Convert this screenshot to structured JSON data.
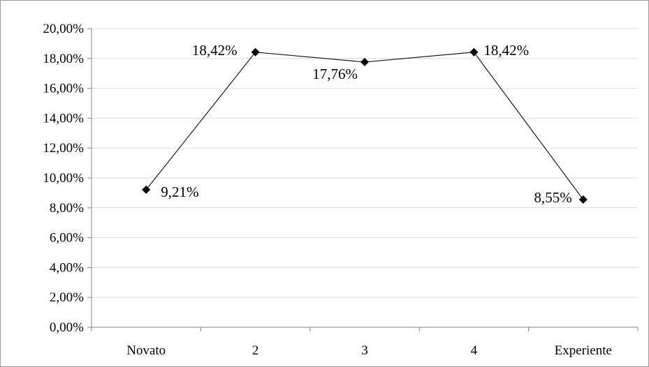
{
  "chart_data": {
    "type": "line",
    "title": "",
    "xlabel": "",
    "ylabel": "",
    "categories": [
      "Novato",
      "2",
      "3",
      "4",
      "Experiente"
    ],
    "series": [
      {
        "values": [
          9.21,
          18.42,
          17.76,
          18.42,
          8.55
        ],
        "data_labels": [
          "9,21%",
          "18,42%",
          "17,76%",
          "18,42%",
          "8,55%"
        ],
        "color": "#000000",
        "marker": "diamond"
      }
    ],
    "ylim": [
      0,
      20
    ],
    "y_ticks": [
      0,
      2,
      4,
      6,
      8,
      10,
      12,
      14,
      16,
      18,
      20
    ],
    "y_tick_labels": [
      "0,00%",
      "2,00%",
      "4,00%",
      "6,00%",
      "8,00%",
      "10,00%",
      "12,00%",
      "14,00%",
      "16,00%",
      "18,00%",
      "20,00%"
    ],
    "grid": true,
    "legend": "none",
    "colors": {
      "gridline": "#d9d9d9",
      "axis": "#868686",
      "border": "#9a9a9a"
    }
  }
}
